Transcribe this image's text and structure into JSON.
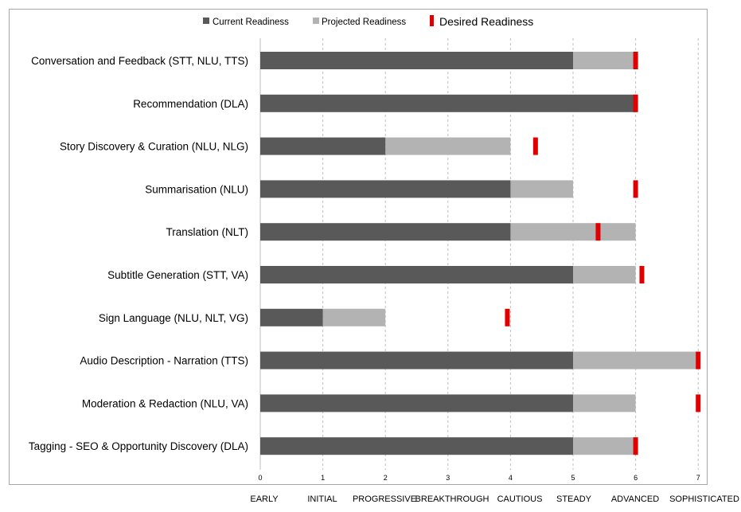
{
  "chart_data": {
    "type": "bar",
    "orientation": "horizontal",
    "categories": [
      "Conversation and Feedback (STT, NLU, TTS)",
      "Recommendation (DLA)",
      "Story Discovery & Curation (NLU, NLG)",
      "Summarisation (NLU)",
      "Translation (NLT)",
      "Subtitle Generation (STT, VA)",
      "Sign Language (NLU, NLT, VG)",
      "Audio Description - Narration (TTS)",
      "Moderation & Redaction (NLU, VA)",
      "Tagging - SEO & Opportunity Discovery (DLA)"
    ],
    "series": [
      {
        "name": "Current Readiness",
        "color": "#595959",
        "values": [
          5,
          6,
          2,
          4,
          4,
          5,
          1,
          5,
          5,
          5
        ]
      },
      {
        "name": "Projected Readiness",
        "color": "#b3b3b3",
        "values": [
          6,
          6,
          4,
          5,
          6,
          6,
          2,
          7,
          6,
          6
        ]
      },
      {
        "name": "Desired Readiness",
        "color": "#e00000",
        "values": [
          6,
          6,
          4.4,
          6,
          5.4,
          6.1,
          3.95,
          7,
          7,
          6
        ]
      }
    ],
    "xlim": [
      0,
      7
    ],
    "xticks": [
      0,
      1,
      2,
      3,
      4,
      5,
      6,
      7
    ],
    "level_labels": [
      "EARLY",
      "INITIAL",
      "PROGRESSIVE",
      "BREAKTHROUGH",
      "CAUTIOUS",
      "STEADY",
      "ADVANCED",
      "SOPHISTICATED"
    ],
    "grid": "vertical dashed",
    "legend_position": "top"
  }
}
